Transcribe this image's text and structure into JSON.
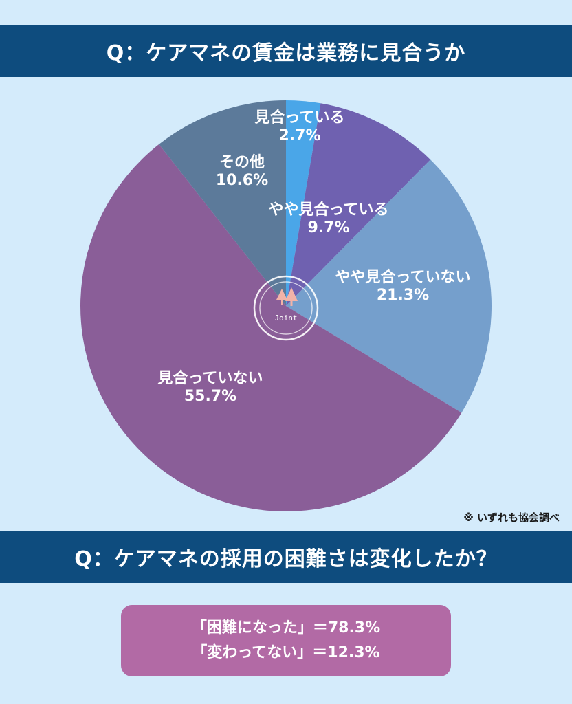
{
  "header": {
    "question1": "Q：ケアマネの賃金は業務に見合うか"
  },
  "chart_data": {
    "type": "pie",
    "slices": [
      {
        "label": "見合っている",
        "value": 2.7,
        "value_label": "2.7%",
        "color": "#4aa6e8"
      },
      {
        "label": "やや見合っている",
        "value": 9.7,
        "value_label": "9.7%",
        "color": "#6f61b0"
      },
      {
        "label": "やや見合っていない",
        "value": 21.3,
        "value_label": "21.3%",
        "color": "#759fcc"
      },
      {
        "label": "見合っていない",
        "value": 55.7,
        "value_label": "55.7%",
        "color": "#8a5e98"
      },
      {
        "label": "その他",
        "value": 10.6,
        "value_label": "10.6%",
        "color": "#5c7a9a"
      }
    ],
    "start": "top",
    "direction": "clockwise",
    "logo_text": "Joint"
  },
  "note": "※ いずれも協会調べ",
  "section2": {
    "question2": "Q：ケアマネの採用の困難さは変化したか？",
    "result1": "「困難になった」＝78.3%",
    "result2": "「変わってない」＝12.3%"
  }
}
